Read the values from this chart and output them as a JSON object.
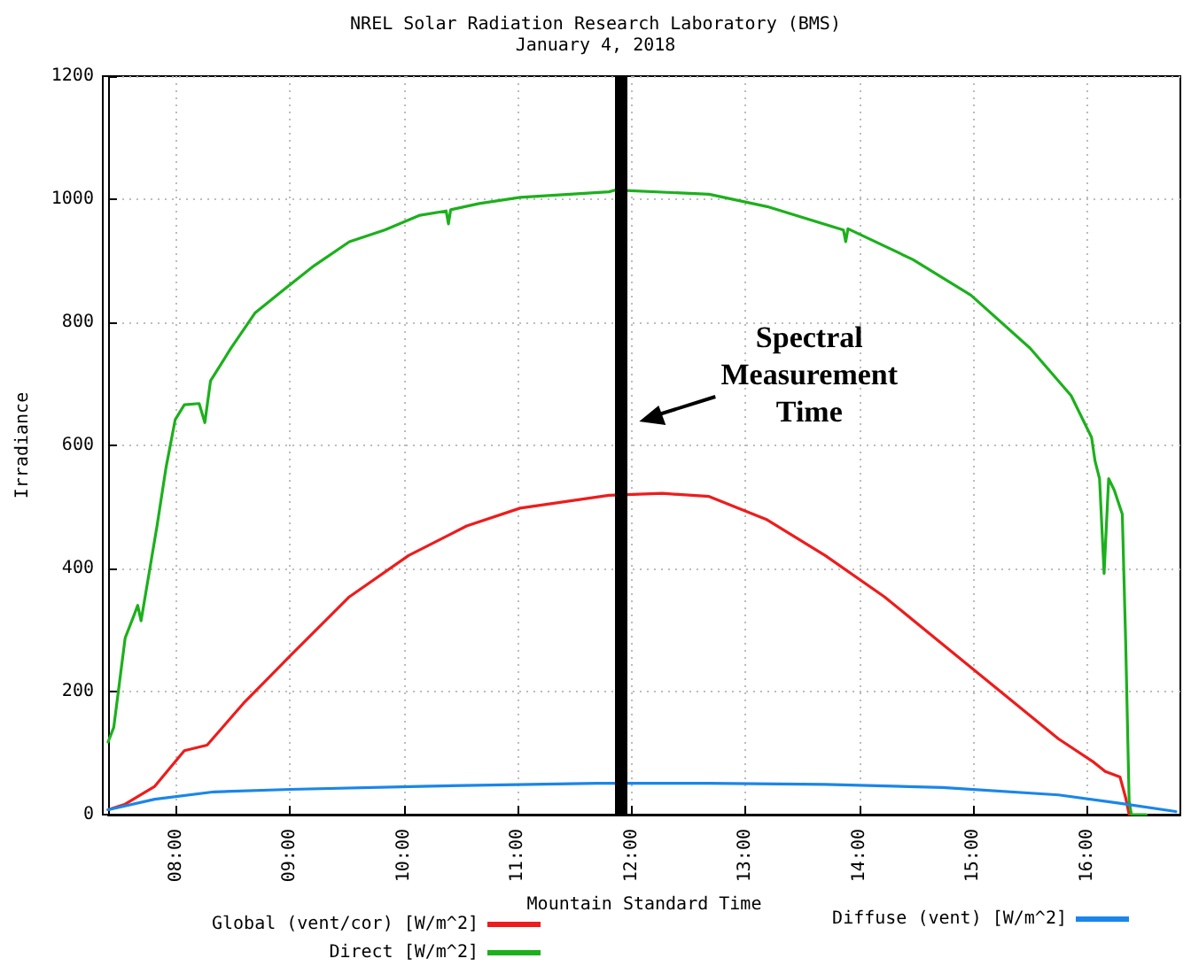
{
  "chart_data": {
    "type": "line",
    "title": "NREL Solar Radiation Research Laboratory (BMS)",
    "subtitle": "January 4, 2018",
    "xlabel": "Mountain Standard Time",
    "ylabel": "Irradiance",
    "xlim": [
      7.4,
      16.82
    ],
    "xticks": [
      {
        "value": 8,
        "label": "08:00"
      },
      {
        "value": 9,
        "label": "09:00"
      },
      {
        "value": 10,
        "label": "10:00"
      },
      {
        "value": 11,
        "label": "11:00"
      },
      {
        "value": 12,
        "label": "12:00"
      },
      {
        "value": 13,
        "label": "13:00"
      },
      {
        "value": 14,
        "label": "14:00"
      },
      {
        "value": 15,
        "label": "15:00"
      },
      {
        "value": 16,
        "label": "16:00"
      }
    ],
    "ylim": [
      0,
      1200
    ],
    "yticks": [
      0,
      200,
      400,
      600,
      800,
      1000,
      1200
    ],
    "grid": true,
    "legend": "bottom",
    "marker": "none",
    "line_style": "solid",
    "series": [
      {
        "name": "Global (vent/cor) [W/m^2]",
        "color": "#ee1c1c",
        "x": [
          7.4,
          7.55,
          7.81,
          8.07,
          8.27,
          8.59,
          9.0,
          9.52,
          10.04,
          10.55,
          11.02,
          11.8,
          12.27,
          12.68,
          13.19,
          13.7,
          14.22,
          14.73,
          15.24,
          15.75,
          16.06,
          16.16,
          16.29,
          16.34,
          16.37
        ],
        "values": [
          8,
          17,
          46,
          104,
          113,
          181,
          258,
          354,
          421,
          469,
          498,
          519,
          522,
          517,
          479,
          421,
          354,
          277,
          200,
          123,
          85,
          70,
          61,
          27,
          0
        ]
      },
      {
        "name": "Direct [W/m^2]",
        "color": "#1cb01c",
        "x": [
          7.4,
          7.45,
          7.49,
          7.55,
          7.63,
          7.66,
          7.69,
          7.76,
          7.83,
          7.91,
          7.99,
          8.07,
          8.2,
          8.25,
          8.3,
          8.48,
          8.69,
          8.95,
          9.21,
          9.52,
          9.83,
          10.14,
          10.37,
          10.39,
          10.41,
          10.66,
          11.02,
          11.8,
          11.86,
          12.68,
          13.19,
          13.86,
          13.88,
          13.9,
          14.47,
          14.98,
          15.5,
          15.86,
          16.04,
          16.07,
          16.11,
          16.15,
          16.19,
          16.24,
          16.31,
          16.34,
          16.37,
          16.39,
          16.52
        ],
        "values": [
          118,
          142,
          200,
          287,
          325,
          340,
          315,
          392,
          469,
          565,
          642,
          666,
          668,
          637,
          705,
          758,
          815,
          854,
          892,
          931,
          950,
          974,
          981,
          960,
          983,
          993,
          1003,
          1012,
          1015,
          1008,
          988,
          950,
          931,
          952,
          902,
          844,
          758,
          681,
          613,
          575,
          546,
          392,
          546,
          527,
          488,
          277,
          22,
          0,
          0
        ]
      },
      {
        "name": "Diffuse (vent) [W/m^2]",
        "color": "#1a86ea",
        "x": [
          7.4,
          7.81,
          8.33,
          9.0,
          10.14,
          11.69,
          12.68,
          13.7,
          14.73,
          15.75,
          16.27,
          16.78
        ],
        "values": [
          8,
          25,
          37,
          41,
          46,
          51,
          51,
          49,
          44,
          32,
          19,
          5
        ]
      }
    ],
    "ref_lines": [
      {
        "axis": "x",
        "value": 11.91,
        "label": null,
        "color": "#000000"
      }
    ],
    "annotations": [
      "Spectral Measurement Time"
    ]
  }
}
